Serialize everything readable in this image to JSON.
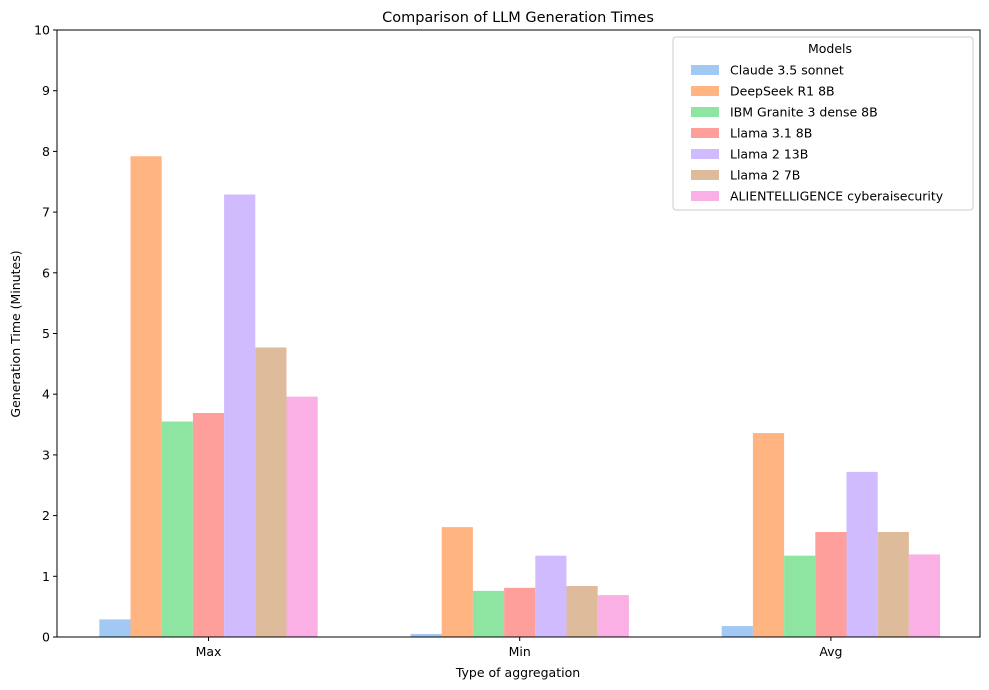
{
  "chart_data": {
    "type": "bar",
    "title": "Comparison of LLM Generation Times",
    "xlabel": "Type of aggregation",
    "ylabel": "Generation Time (Minutes)",
    "categories": [
      "Max",
      "Min",
      "Avg"
    ],
    "ylim": [
      0,
      10
    ],
    "yticks": [
      "0",
      "1",
      "2",
      "3",
      "4",
      "5",
      "6",
      "7",
      "8",
      "9",
      "10"
    ],
    "grid": false,
    "legend": {
      "title": "Models",
      "position": "top-right"
    },
    "series": [
      {
        "name": "Claude 3.5 sonnet",
        "color": "#a1c9f4",
        "values": [
          0.29,
          0.05,
          0.18
        ]
      },
      {
        "name": "DeepSeek R1 8B",
        "color": "#ffb482",
        "values": [
          7.92,
          1.81,
          3.36
        ]
      },
      {
        "name": "IBM Granite 3 dense 8B",
        "color": "#8de5a1",
        "values": [
          3.55,
          0.76,
          1.34
        ]
      },
      {
        "name": "Llama 3.1 8B",
        "color": "#ff9f9b",
        "values": [
          3.69,
          0.81,
          1.73
        ]
      },
      {
        "name": "Llama 2 13B",
        "color": "#d0bbff",
        "values": [
          7.29,
          1.34,
          2.72
        ]
      },
      {
        "name": "Llama 2 7B",
        "color": "#debb9b",
        "values": [
          4.77,
          0.84,
          1.73
        ]
      },
      {
        "name": "ALIENTELLIGENCE cyberaisecurity",
        "color": "#fab0e4",
        "values": [
          3.96,
          0.69,
          1.36
        ]
      }
    ]
  }
}
